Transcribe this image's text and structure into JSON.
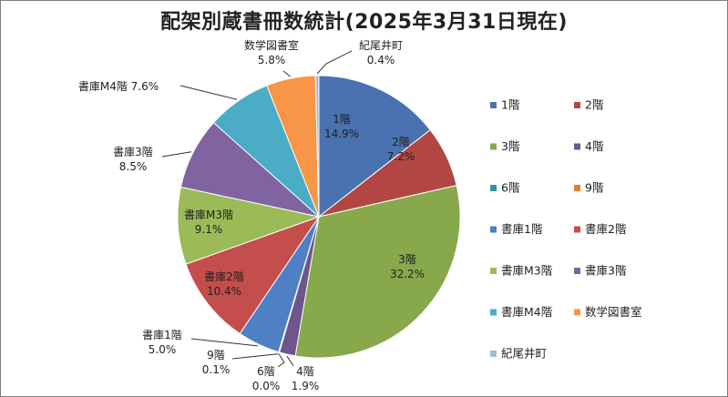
{
  "chart_data": {
    "type": "pie",
    "title": "配架別蔵書冊数統計(2025年3月31日現在)",
    "slices": [
      {
        "name": "1階",
        "value": 14.9,
        "label": "14.9%",
        "color": "#4a72b0"
      },
      {
        "name": "2階",
        "value": 7.2,
        "label": "7.2%",
        "color": "#b14643"
      },
      {
        "name": "3階",
        "value": 32.2,
        "label": "32.2%",
        "color": "#87a84b"
      },
      {
        "name": "4階",
        "value": 1.9,
        "label": "1.9%",
        "color": "#6e558c"
      },
      {
        "name": "6階",
        "value": 0.0,
        "label": "0.0%",
        "color": "#3a91a8"
      },
      {
        "name": "9階",
        "value": 0.1,
        "label": "0.1%",
        "color": "#dc8135"
      },
      {
        "name": "書庫1階",
        "value": 5.0,
        "label": "5.0%",
        "color": "#4f7fc4"
      },
      {
        "name": "書庫2階",
        "value": 10.4,
        "label": "10.4%",
        "color": "#c44e4b"
      },
      {
        "name": "書庫M3階",
        "value": 9.1,
        "label": "9.1%",
        "color": "#9bbb59"
      },
      {
        "name": "書庫3階",
        "value": 8.5,
        "label": "8.5%",
        "color": "#8064a2"
      },
      {
        "name": "書庫M4階",
        "value": 7.6,
        "label": "7.6%",
        "color": "#4bacc6"
      },
      {
        "name": "数学図書室",
        "value": 5.8,
        "label": "5.8%",
        "color": "#f79646"
      },
      {
        "name": "紀尾井町",
        "value": 0.4,
        "label": "0.4%",
        "color": "#a5b8dc"
      }
    ],
    "legend_position": "right"
  }
}
